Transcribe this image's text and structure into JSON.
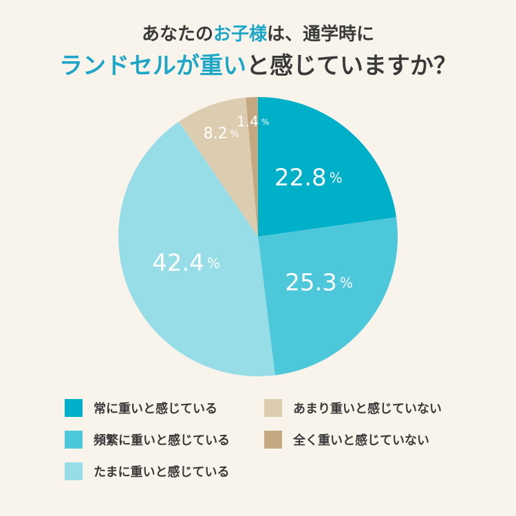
{
  "title": {
    "line1_a": "あなたの",
    "line1_accent": "お子様",
    "line1_b": "は、通学時に",
    "line2_accent": "ランドセルが重い",
    "line2_b": "と感じていますか？"
  },
  "chart_data": {
    "type": "pie",
    "slices": [
      {
        "label": "常に重いと感じている",
        "value": 22.8,
        "display": "22.8",
        "color": "#00b0c8"
      },
      {
        "label": "頻繁に重いと感じている",
        "value": 25.3,
        "display": "25.3",
        "color": "#4dc8da"
      },
      {
        "label": "たまに重いと感じている",
        "value": 42.4,
        "display": "42.4",
        "color": "#96dde8"
      },
      {
        "label": "あまり重いと感じていない",
        "value": 8.2,
        "display": "8.2",
        "color": "#ddcdb0"
      },
      {
        "label": "全く重いと感じていない",
        "value": 1.4,
        "display": "1.4",
        "color": "#c4a882"
      }
    ],
    "unit": "%"
  }
}
